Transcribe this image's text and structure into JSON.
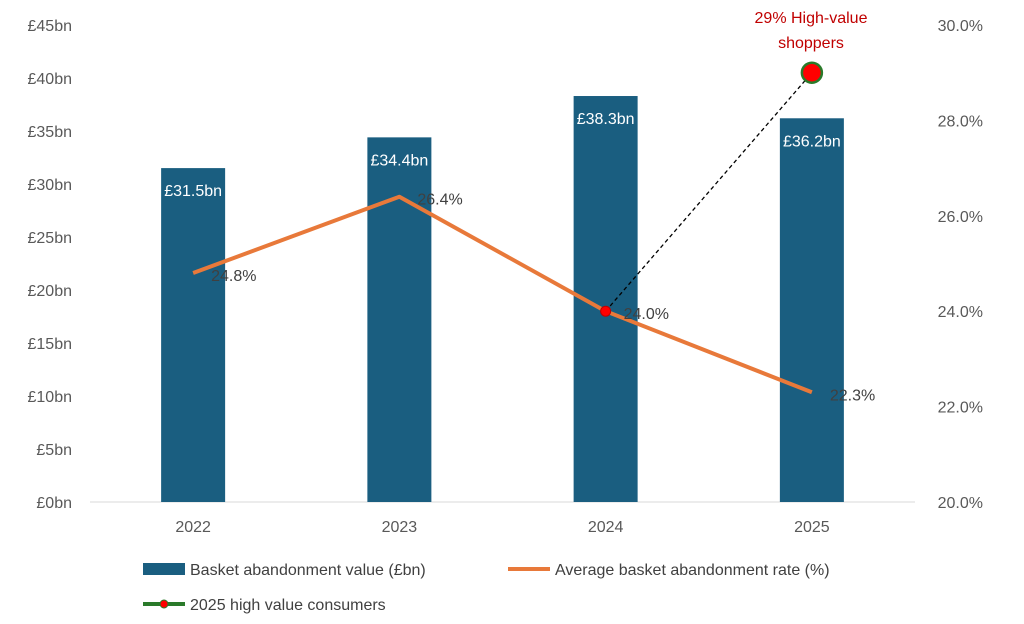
{
  "chart_data": {
    "type": "bar",
    "categories": [
      "2022",
      "2023",
      "2024",
      "2025"
    ],
    "series": [
      {
        "name": "Basket abandonment value (£bn)",
        "type": "bar",
        "axis": "left",
        "values": [
          31.5,
          34.4,
          38.3,
          36.2
        ],
        "labels": [
          "£31.5bn",
          "£34.4bn",
          "£38.3bn",
          "£36.2bn"
        ],
        "color": "#1a5e80"
      },
      {
        "name": "Average basket abandonment rate (%)",
        "type": "line",
        "axis": "right",
        "values": [
          24.8,
          26.4,
          24.0,
          22.3
        ],
        "labels": [
          "24.8%",
          "26.4%",
          "24.0%",
          "22.3%"
        ],
        "color": "#e8793a"
      },
      {
        "name": "2025 high value consumers",
        "type": "line",
        "axis": "right",
        "points": [
          {
            "category": "2024",
            "value": 24.0
          },
          {
            "category": "2025",
            "value": 29.0
          }
        ],
        "color": "#2a7a2a",
        "marker_color": "#ff0000"
      }
    ],
    "left_axis": {
      "ylim": [
        0,
        45
      ],
      "ticks": [
        0,
        5,
        10,
        15,
        20,
        25,
        30,
        35,
        40,
        45
      ],
      "tick_labels": [
        "£0bn",
        "£5bn",
        "£10bn",
        "£15bn",
        "£20bn",
        "£25bn",
        "£30bn",
        "£35bn",
        "£40bn",
        "£45bn"
      ]
    },
    "right_axis": {
      "ylim": [
        20,
        30
      ],
      "ticks": [
        20,
        22,
        24,
        26,
        28,
        30
      ],
      "tick_labels": [
        "20.0%",
        "22.0%",
        "24.0%",
        "26.0%",
        "28.0%",
        "30.0%"
      ]
    },
    "annotation": {
      "lines": [
        "29% High-value",
        "shoppers"
      ],
      "color": "#c00000"
    },
    "legend": {
      "position": "bottom",
      "items": [
        {
          "label": "Basket abandonment value (£bn)",
          "kind": "bar"
        },
        {
          "label": "Average basket abandonment rate (%)",
          "kind": "line"
        },
        {
          "label": "2025 high value consumers",
          "kind": "marker-line"
        }
      ]
    },
    "grid": false
  }
}
